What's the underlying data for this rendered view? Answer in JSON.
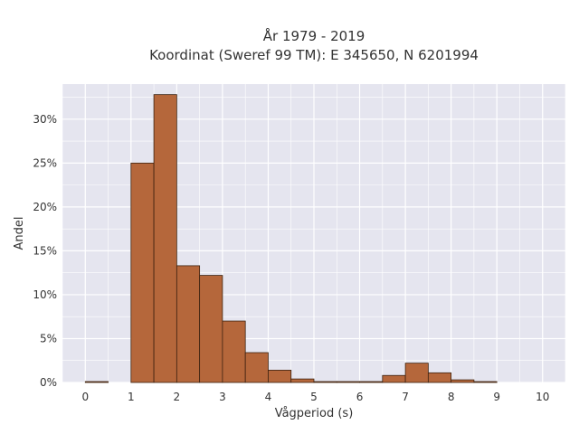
{
  "chart_data": {
    "type": "bar",
    "title_lines": [
      "År 1979 - 2019",
      "Koordinat (Sweref 99 TM): E 345650, N 6201994"
    ],
    "xlabel": "Vågperiod (s)",
    "ylabel": "Andel",
    "bin_width": 0.5,
    "bins": [
      {
        "start": 0.0,
        "value": 0.1
      },
      {
        "start": 0.5,
        "value": 0.0
      },
      {
        "start": 1.0,
        "value": 25.0
      },
      {
        "start": 1.5,
        "value": 32.8
      },
      {
        "start": 2.0,
        "value": 13.3
      },
      {
        "start": 2.5,
        "value": 12.2
      },
      {
        "start": 3.0,
        "value": 7.0
      },
      {
        "start": 3.5,
        "value": 3.4
      },
      {
        "start": 4.0,
        "value": 1.4
      },
      {
        "start": 4.5,
        "value": 0.4
      },
      {
        "start": 5.0,
        "value": 0.1
      },
      {
        "start": 5.5,
        "value": 0.1
      },
      {
        "start": 6.0,
        "value": 0.1
      },
      {
        "start": 6.5,
        "value": 0.8
      },
      {
        "start": 7.0,
        "value": 2.2
      },
      {
        "start": 7.5,
        "value": 1.1
      },
      {
        "start": 8.0,
        "value": 0.3
      },
      {
        "start": 8.5,
        "value": 0.1
      }
    ],
    "xlim": [
      -0.5,
      10.5
    ],
    "ylim": [
      0,
      34
    ],
    "xticks": [
      0,
      1,
      2,
      3,
      4,
      5,
      6,
      7,
      8,
      9,
      10
    ],
    "xtick_labels": [
      "0",
      "1",
      "2",
      "3",
      "4",
      "5",
      "6",
      "7",
      "8",
      "9",
      "10"
    ],
    "yticks": [
      0,
      5,
      10,
      15,
      20,
      25,
      30
    ],
    "ytick_labels": [
      "0%",
      "5%",
      "10%",
      "15%",
      "20%",
      "25%",
      "30%"
    ],
    "grid": true,
    "colors": {
      "bar_fill": "#b5673b",
      "bar_stroke": "#3d2210",
      "plot_bg": "#e5e5ef",
      "grid": "#ffffff"
    }
  }
}
